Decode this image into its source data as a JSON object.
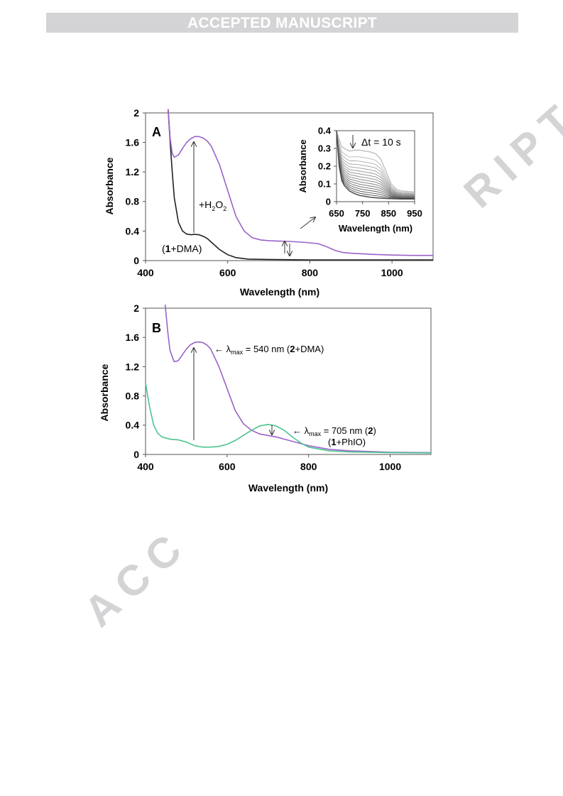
{
  "header": {
    "banner": "ACCEPTED MANUSCRIPT"
  },
  "watermark": {
    "top": "RIPT",
    "bottom": "ACC"
  },
  "colors": {
    "purple": "#9b62c7",
    "black": "#222222",
    "green": "#4cc490",
    "frame": "#555555"
  },
  "chart_data": [
    {
      "panel": "A",
      "type": "line",
      "xlabel": "Wavelength (nm)",
      "ylabel": "Absorbance",
      "xlim": [
        400,
        1100
      ],
      "ylim": [
        0,
        2
      ],
      "xticks": [
        400,
        600,
        800,
        1000
      ],
      "yticks": [
        0,
        0.4,
        0.8,
        1.2,
        1.6,
        2
      ],
      "grid": false,
      "series": [
        {
          "name": "(1+DMA)",
          "color": "#222222",
          "x": [
            455,
            460,
            465,
            470,
            480,
            490,
            500,
            510,
            520,
            530,
            540,
            550,
            560,
            580,
            600,
            620,
            650,
            700,
            800,
            900,
            1000,
            1100
          ],
          "y": [
            2.05,
            1.6,
            1.2,
            0.85,
            0.52,
            0.4,
            0.36,
            0.35,
            0.355,
            0.35,
            0.33,
            0.3,
            0.25,
            0.15,
            0.08,
            0.04,
            0.02,
            0.015,
            0.01,
            0.01,
            0.01,
            0.01
          ]
        },
        {
          "name": "+H2O2",
          "color": "#9b62c7",
          "x": [
            455,
            460,
            465,
            470,
            480,
            490,
            500,
            510,
            520,
            530,
            540,
            550,
            560,
            580,
            600,
            620,
            640,
            660,
            680,
            700,
            720,
            750,
            780,
            800,
            820,
            840,
            860,
            880,
            900,
            950,
            1000,
            1050,
            1100
          ],
          "y": [
            2.05,
            1.65,
            1.45,
            1.4,
            1.43,
            1.52,
            1.6,
            1.65,
            1.68,
            1.68,
            1.66,
            1.62,
            1.55,
            1.3,
            0.95,
            0.6,
            0.4,
            0.31,
            0.28,
            0.27,
            0.265,
            0.26,
            0.25,
            0.24,
            0.23,
            0.19,
            0.14,
            0.11,
            0.1,
            0.085,
            0.075,
            0.07,
            0.07
          ]
        }
      ],
      "annotations": [
        "+H2O2",
        "(1+DMA)"
      ],
      "inset": {
        "xlabel": "Wavelength (nm)",
        "ylabel": "Absorbance",
        "xlim": [
          650,
          950
        ],
        "ylim": [
          0,
          0.4
        ],
        "xticks": [
          650,
          750,
          850,
          950
        ],
        "yticks": [
          0,
          0.1,
          0.2,
          0.3,
          0.4
        ],
        "label": "Δt = 10 s",
        "curve_count": 16,
        "x": [
          650,
          660,
          670,
          680,
          700,
          720,
          740,
          760,
          780,
          800,
          820,
          840,
          860,
          880,
          900,
          950
        ],
        "top_y": [
          0.4,
          0.35,
          0.31,
          0.3,
          0.285,
          0.29,
          0.29,
          0.285,
          0.28,
          0.27,
          0.24,
          0.17,
          0.1,
          0.07,
          0.06,
          0.055
        ],
        "bottom_y": [
          0.4,
          0.2,
          0.12,
          0.09,
          0.06,
          0.045,
          0.035,
          0.03,
          0.025,
          0.022,
          0.02,
          0.018,
          0.017,
          0.016,
          0.015,
          0.015
        ]
      }
    },
    {
      "panel": "B",
      "type": "line",
      "xlabel": "Wavelength (nm)",
      "ylabel": "Absorbance",
      "xlim": [
        400,
        1100
      ],
      "ylim": [
        0,
        2
      ],
      "xticks": [
        400,
        600,
        800,
        1000
      ],
      "yticks": [
        0,
        0.4,
        0.8,
        1.2,
        1.6,
        2
      ],
      "grid": false,
      "series": [
        {
          "name": "(2+DMA)",
          "color": "#9b62c7",
          "x": [
            448,
            455,
            460,
            470,
            480,
            490,
            500,
            510,
            520,
            530,
            540,
            550,
            560,
            580,
            600,
            620,
            640,
            660,
            680,
            700,
            720,
            740,
            760,
            800,
            850,
            900,
            1000,
            1100
          ],
          "y": [
            2.05,
            1.65,
            1.42,
            1.27,
            1.28,
            1.36,
            1.44,
            1.5,
            1.53,
            1.54,
            1.53,
            1.5,
            1.44,
            1.2,
            0.9,
            0.6,
            0.42,
            0.33,
            0.28,
            0.26,
            0.24,
            0.21,
            0.18,
            0.12,
            0.07,
            0.05,
            0.03,
            0.025
          ]
        },
        {
          "name": "(1+PhIO)",
          "color": "#4cc490",
          "x": [
            400,
            410,
            420,
            430,
            440,
            460,
            480,
            500,
            520,
            540,
            560,
            580,
            600,
            620,
            640,
            660,
            680,
            700,
            720,
            740,
            760,
            780,
            800,
            850,
            900,
            1000,
            1100
          ],
          "y": [
            0.98,
            0.65,
            0.4,
            0.29,
            0.24,
            0.21,
            0.2,
            0.17,
            0.12,
            0.1,
            0.1,
            0.11,
            0.14,
            0.19,
            0.26,
            0.33,
            0.39,
            0.41,
            0.39,
            0.33,
            0.24,
            0.16,
            0.1,
            0.05,
            0.035,
            0.025,
            0.02
          ]
        }
      ],
      "annotations": [
        {
          "prefix": "← λ",
          "sub": "max",
          "text": " = 540 nm (",
          "bold": "2",
          "suffix": "+DMA)"
        },
        {
          "prefix": "← λ",
          "sub": "max",
          "text": " = 705 nm (",
          "bold": "2",
          "suffix": ")"
        },
        {
          "prefix": "(",
          "bold": "1",
          "suffix": "+PhIO)"
        }
      ]
    }
  ]
}
